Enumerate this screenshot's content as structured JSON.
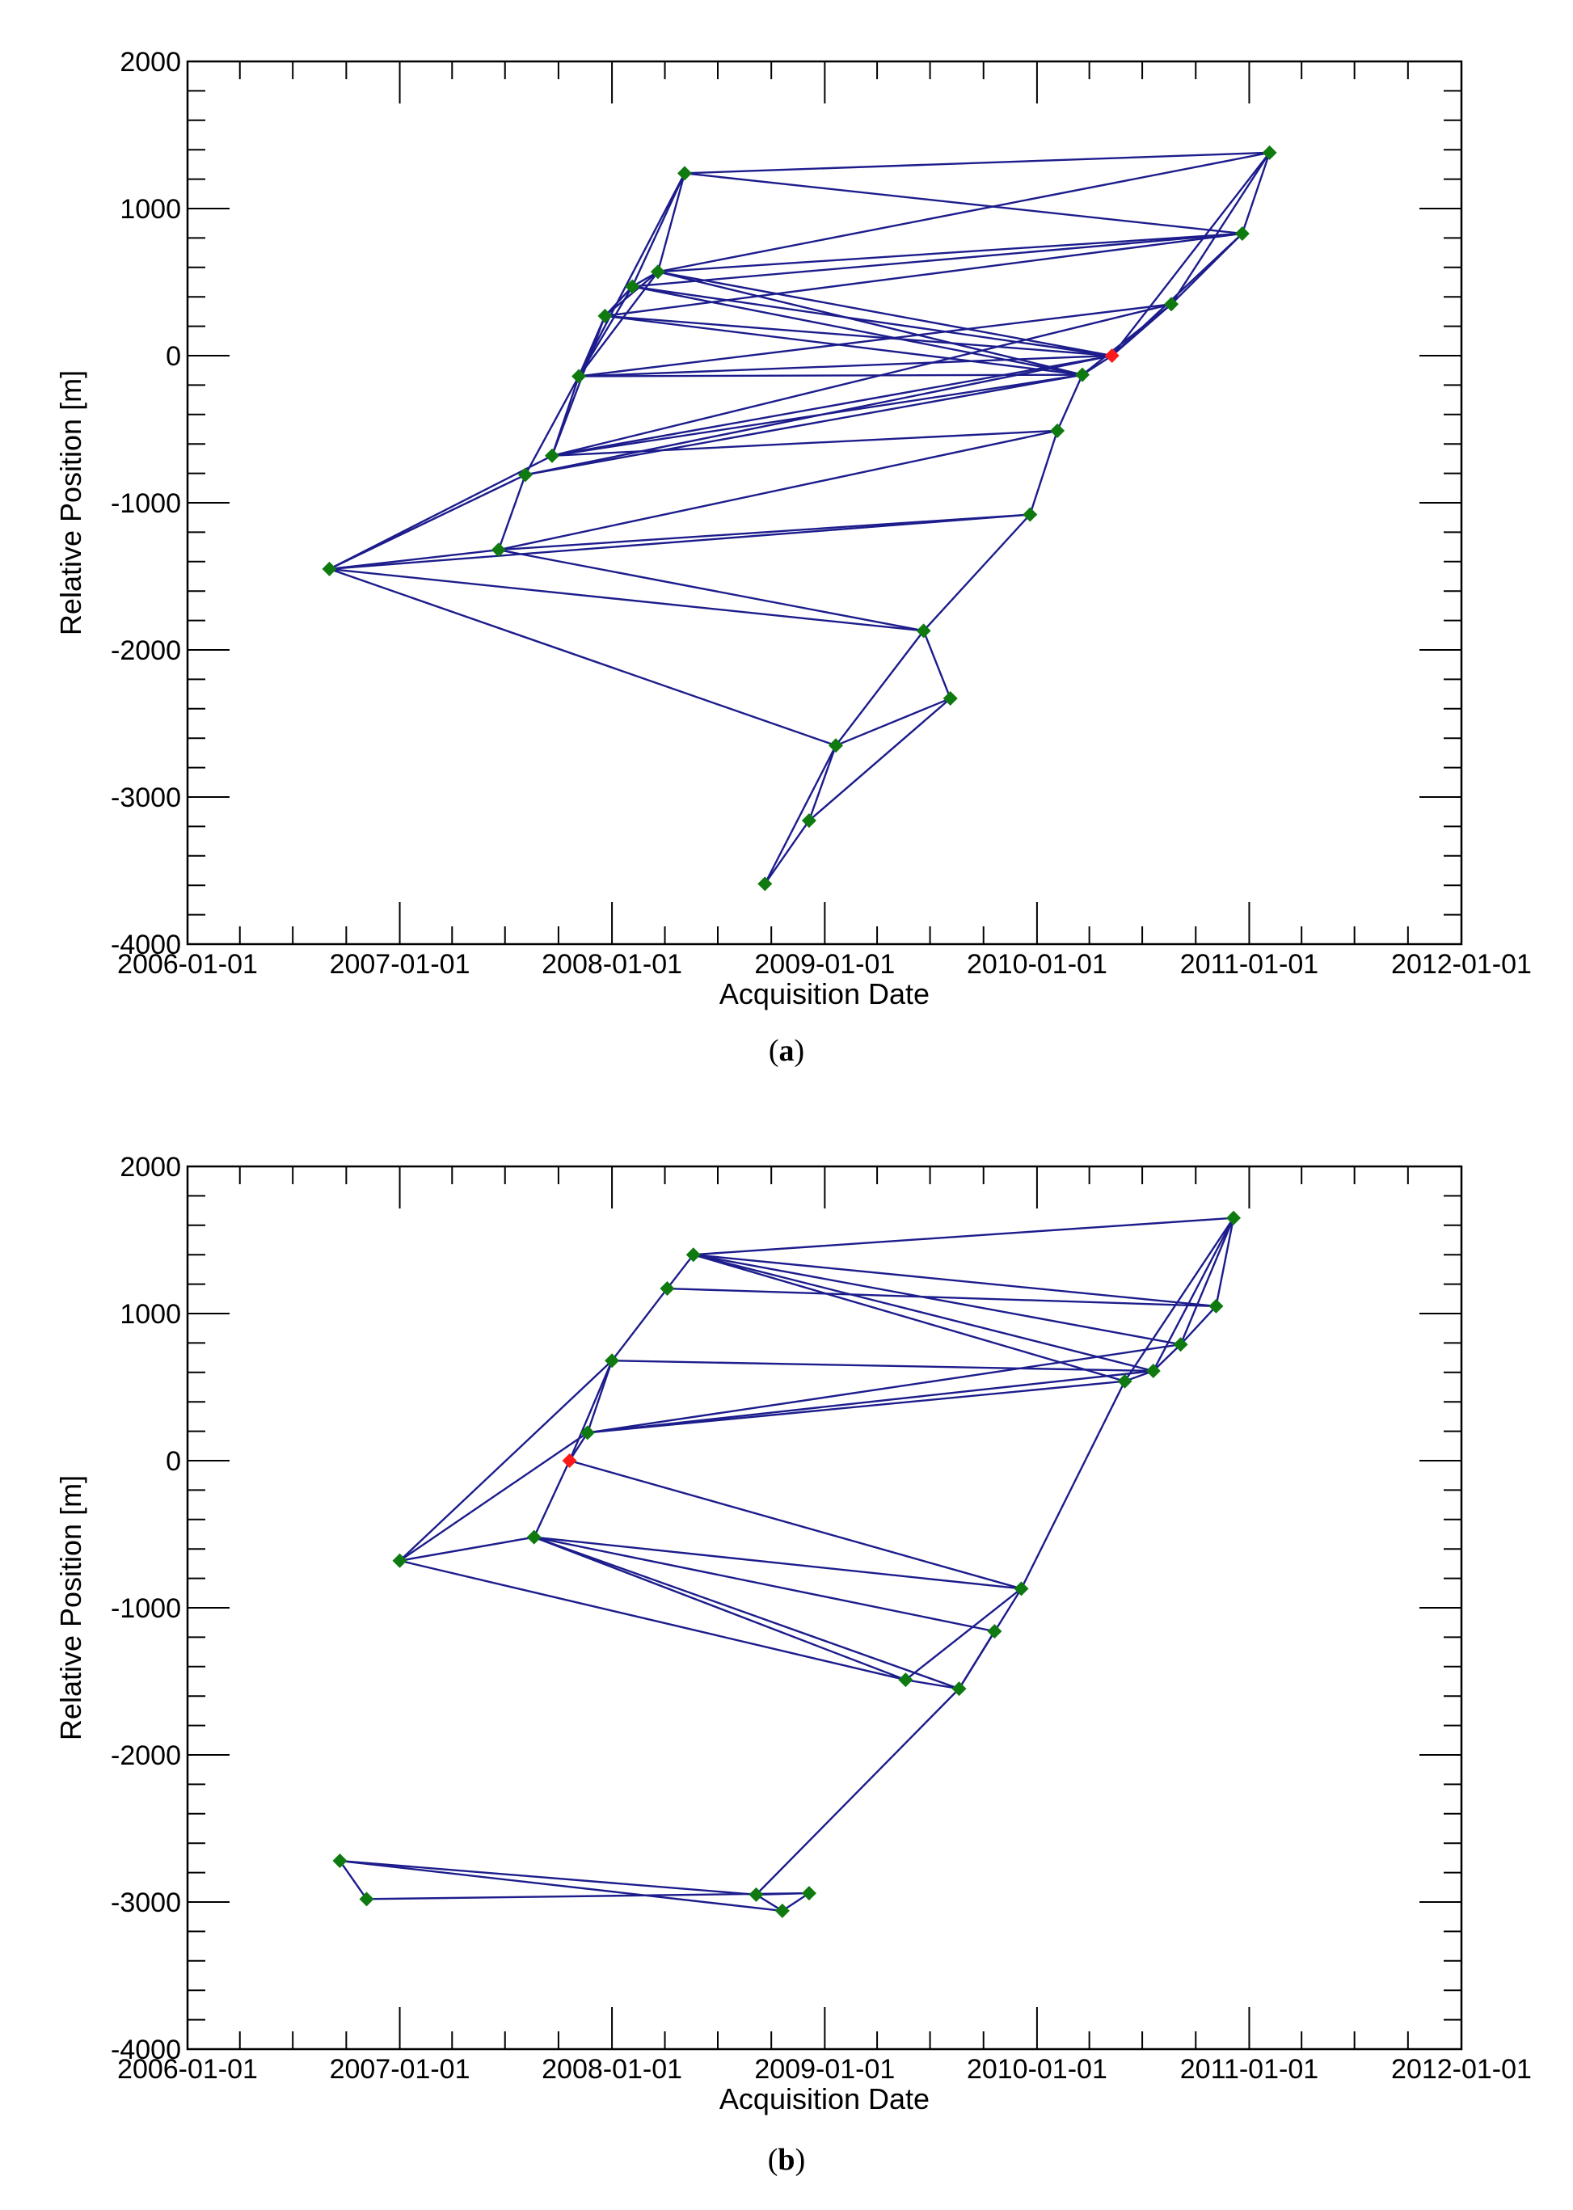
{
  "chart_data": [
    {
      "type": "line",
      "caption_label": "a",
      "xlabel": "Acquisition Date",
      "ylabel": "Relative Position [m]",
      "xlim": [
        "2006-01-01",
        "2012-01-01"
      ],
      "ylim": [
        -4000,
        2000
      ],
      "x_ticks": [
        "2006-01-01",
        "2007-01-01",
        "2008-01-01",
        "2009-01-01",
        "2010-01-01",
        "2011-01-01",
        "2012-01-01"
      ],
      "y_ticks": [
        2000,
        1000,
        0,
        -1000,
        -2000,
        -3000,
        -4000
      ],
      "grid": false,
      "colors": {
        "edge": "#1c1c8c",
        "node": "#0f7a0f",
        "master": "#ff1a1a",
        "axis": "#000000"
      },
      "master_date": "2010-05-10",
      "nodes": [
        {
          "date": "2006-09-02",
          "pos": -1450
        },
        {
          "date": "2007-06-20",
          "pos": -1320
        },
        {
          "date": "2007-08-05",
          "pos": -810
        },
        {
          "date": "2007-09-20",
          "pos": -680
        },
        {
          "date": "2007-11-05",
          "pos": -140
        },
        {
          "date": "2007-12-20",
          "pos": 270
        },
        {
          "date": "2008-02-05",
          "pos": 470
        },
        {
          "date": "2008-03-20",
          "pos": 570
        },
        {
          "date": "2008-05-05",
          "pos": 1240
        },
        {
          "date": "2008-09-20",
          "pos": -3590
        },
        {
          "date": "2008-12-05",
          "pos": -3160
        },
        {
          "date": "2009-01-20",
          "pos": -2650
        },
        {
          "date": "2009-06-20",
          "pos": -1870
        },
        {
          "date": "2009-08-05",
          "pos": -2330
        },
        {
          "date": "2009-12-20",
          "pos": -1080
        },
        {
          "date": "2010-02-05",
          "pos": -510
        },
        {
          "date": "2010-03-20",
          "pos": -130
        },
        {
          "date": "2010-05-10",
          "pos": 0
        },
        {
          "date": "2010-08-20",
          "pos": 350
        },
        {
          "date": "2010-12-20",
          "pos": 830
        },
        {
          "date": "2011-02-05",
          "pos": 1380
        }
      ],
      "edges": [
        [
          "2006-09-02",
          "2007-08-05"
        ],
        [
          "2006-09-02",
          "2007-09-20"
        ],
        [
          "2006-09-02",
          "2007-06-20"
        ],
        [
          "2006-09-02",
          "2009-06-20"
        ],
        [
          "2006-09-02",
          "2009-01-20"
        ],
        [
          "2006-09-02",
          "2009-12-20"
        ],
        [
          "2007-06-20",
          "2007-08-05"
        ],
        [
          "2007-06-20",
          "2009-12-20"
        ],
        [
          "2007-06-20",
          "2010-02-05"
        ],
        [
          "2007-06-20",
          "2009-06-20"
        ],
        [
          "2007-08-05",
          "2007-11-05"
        ],
        [
          "2007-08-05",
          "2010-03-20"
        ],
        [
          "2007-08-05",
          "2010-05-10"
        ],
        [
          "2007-09-20",
          "2007-11-05"
        ],
        [
          "2007-09-20",
          "2007-12-20"
        ],
        [
          "2007-09-20",
          "2010-03-20"
        ],
        [
          "2007-09-20",
          "2010-05-10"
        ],
        [
          "2007-09-20",
          "2010-02-05"
        ],
        [
          "2007-09-20",
          "2010-08-20"
        ],
        [
          "2007-11-05",
          "2007-12-20"
        ],
        [
          "2007-11-05",
          "2008-02-05"
        ],
        [
          "2007-11-05",
          "2008-03-20"
        ],
        [
          "2007-11-05",
          "2008-05-05"
        ],
        [
          "2007-11-05",
          "2010-03-20"
        ],
        [
          "2007-11-05",
          "2010-05-10"
        ],
        [
          "2007-11-05",
          "2010-08-20"
        ],
        [
          "2007-12-20",
          "2008-02-05"
        ],
        [
          "2007-12-20",
          "2008-03-20"
        ],
        [
          "2007-12-20",
          "2010-05-10"
        ],
        [
          "2007-12-20",
          "2010-03-20"
        ],
        [
          "2007-12-20",
          "2010-12-20"
        ],
        [
          "2008-02-05",
          "2008-03-20"
        ],
        [
          "2008-02-05",
          "2008-05-05"
        ],
        [
          "2008-02-05",
          "2010-12-20"
        ],
        [
          "2008-02-05",
          "2010-03-20"
        ],
        [
          "2008-02-05",
          "2010-05-10"
        ],
        [
          "2008-03-20",
          "2008-05-05"
        ],
        [
          "2008-03-20",
          "2010-12-20"
        ],
        [
          "2008-03-20",
          "2011-02-05"
        ],
        [
          "2008-03-20",
          "2010-05-10"
        ],
        [
          "2008-03-20",
          "2010-03-20"
        ],
        [
          "2008-05-05",
          "2011-02-05"
        ],
        [
          "2008-05-05",
          "2010-12-20"
        ],
        [
          "2008-09-20",
          "2009-01-20"
        ],
        [
          "2008-09-20",
          "2008-12-05"
        ],
        [
          "2008-12-05",
          "2009-01-20"
        ],
        [
          "2008-12-05",
          "2009-08-05"
        ],
        [
          "2009-01-20",
          "2009-06-20"
        ],
        [
          "2009-01-20",
          "2009-08-05"
        ],
        [
          "2009-06-20",
          "2009-08-05"
        ],
        [
          "2009-06-20",
          "2009-12-20"
        ],
        [
          "2009-12-20",
          "2010-02-05"
        ],
        [
          "2010-02-05",
          "2010-03-20"
        ],
        [
          "2010-03-20",
          "2010-05-10"
        ],
        [
          "2010-03-20",
          "2010-08-20"
        ],
        [
          "2010-05-10",
          "2010-08-20"
        ],
        [
          "2010-05-10",
          "2010-12-20"
        ],
        [
          "2010-05-10",
          "2011-02-05"
        ],
        [
          "2010-08-20",
          "2010-12-20"
        ],
        [
          "2010-08-20",
          "2011-02-05"
        ],
        [
          "2010-12-20",
          "2011-02-05"
        ]
      ]
    },
    {
      "type": "line",
      "caption_label": "b",
      "xlabel": "Acquisition Date",
      "ylabel": "Relative Position [m]",
      "xlim": [
        "2006-01-01",
        "2012-01-01"
      ],
      "ylim": [
        -4000,
        2000
      ],
      "x_ticks": [
        "2006-01-01",
        "2007-01-01",
        "2008-01-01",
        "2009-01-01",
        "2010-01-01",
        "2011-01-01",
        "2012-01-01"
      ],
      "y_ticks": [
        2000,
        1000,
        0,
        -1000,
        -2000,
        -3000,
        -4000
      ],
      "grid": false,
      "colors": {
        "edge": "#1c1c8c",
        "node": "#0f7a0f",
        "master": "#ff1a1a",
        "axis": "#000000"
      },
      "master_date": "2007-10-20",
      "nodes": [
        {
          "date": "2006-09-20",
          "pos": -2720
        },
        {
          "date": "2006-11-05",
          "pos": -2980
        },
        {
          "date": "2007-01-01",
          "pos": -680
        },
        {
          "date": "2007-08-20",
          "pos": -520
        },
        {
          "date": "2007-10-20",
          "pos": 0
        },
        {
          "date": "2007-11-20",
          "pos": 190
        },
        {
          "date": "2008-01-01",
          "pos": 680
        },
        {
          "date": "2008-04-05",
          "pos": 1170
        },
        {
          "date": "2008-05-20",
          "pos": 1400
        },
        {
          "date": "2008-09-05",
          "pos": -2950
        },
        {
          "date": "2008-10-20",
          "pos": -3060
        },
        {
          "date": "2008-12-05",
          "pos": -2940
        },
        {
          "date": "2009-05-20",
          "pos": -1490
        },
        {
          "date": "2009-08-20",
          "pos": -1550
        },
        {
          "date": "2009-10-20",
          "pos": -1160
        },
        {
          "date": "2009-12-05",
          "pos": -870
        },
        {
          "date": "2010-06-01",
          "pos": 540
        },
        {
          "date": "2010-07-20",
          "pos": 610
        },
        {
          "date": "2010-09-05",
          "pos": 790
        },
        {
          "date": "2010-11-05",
          "pos": 1050
        },
        {
          "date": "2010-12-05",
          "pos": 1650
        }
      ],
      "edges": [
        [
          "2006-09-20",
          "2006-11-05"
        ],
        [
          "2006-09-20",
          "2008-10-20"
        ],
        [
          "2006-09-20",
          "2008-09-05"
        ],
        [
          "2006-11-05",
          "2008-12-05"
        ],
        [
          "2008-09-05",
          "2008-10-20"
        ],
        [
          "2008-09-05",
          "2008-12-05"
        ],
        [
          "2008-10-20",
          "2008-12-05"
        ],
        [
          "2008-09-05",
          "2009-08-20"
        ],
        [
          "2007-01-01",
          "2007-08-20"
        ],
        [
          "2007-01-01",
          "2007-11-20"
        ],
        [
          "2007-01-01",
          "2008-01-01"
        ],
        [
          "2007-01-01",
          "2009-05-20"
        ],
        [
          "2007-08-20",
          "2007-10-20"
        ],
        [
          "2007-08-20",
          "2009-05-20"
        ],
        [
          "2007-08-20",
          "2009-08-20"
        ],
        [
          "2007-08-20",
          "2009-10-20"
        ],
        [
          "2007-08-20",
          "2009-12-05"
        ],
        [
          "2007-10-20",
          "2007-11-20"
        ],
        [
          "2007-10-20",
          "2008-01-01"
        ],
        [
          "2007-10-20",
          "2009-12-05"
        ],
        [
          "2007-11-20",
          "2008-01-01"
        ],
        [
          "2007-11-20",
          "2010-06-01"
        ],
        [
          "2007-11-20",
          "2010-07-20"
        ],
        [
          "2007-11-20",
          "2010-09-05"
        ],
        [
          "2008-01-01",
          "2008-04-05"
        ],
        [
          "2008-01-01",
          "2010-07-20"
        ],
        [
          "2008-04-05",
          "2008-05-20"
        ],
        [
          "2008-04-05",
          "2010-11-05"
        ],
        [
          "2008-05-20",
          "2010-12-05"
        ],
        [
          "2008-05-20",
          "2010-06-01"
        ],
        [
          "2008-05-20",
          "2010-07-20"
        ],
        [
          "2008-05-20",
          "2010-09-05"
        ],
        [
          "2008-05-20",
          "2010-11-05"
        ],
        [
          "2009-05-20",
          "2009-08-20"
        ],
        [
          "2009-05-20",
          "2009-12-05"
        ],
        [
          "2009-08-20",
          "2009-10-20"
        ],
        [
          "2009-08-20",
          "2009-12-05"
        ],
        [
          "2009-12-05",
          "2010-06-01"
        ],
        [
          "2010-06-01",
          "2010-07-20"
        ],
        [
          "2010-06-01",
          "2010-12-05"
        ],
        [
          "2010-07-20",
          "2010-09-05"
        ],
        [
          "2010-07-20",
          "2010-12-05"
        ],
        [
          "2010-09-05",
          "2010-11-05"
        ],
        [
          "2010-09-05",
          "2010-12-05"
        ],
        [
          "2010-11-05",
          "2010-12-05"
        ]
      ]
    }
  ]
}
